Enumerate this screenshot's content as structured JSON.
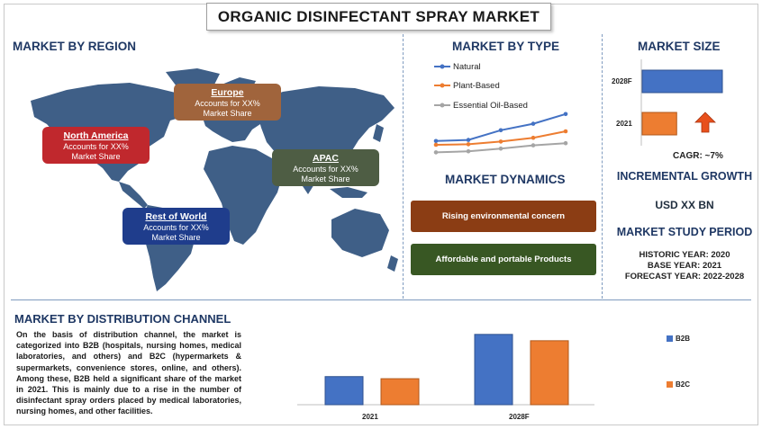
{
  "title": "ORGANIC DISINFECTANT SPRAY MARKET",
  "region": {
    "heading": "MARKET BY REGION",
    "boxes": [
      {
        "name": "North America",
        "line1": "Accounts for XX%",
        "line2": "Market Share",
        "color": "#c0282d"
      },
      {
        "name": "Europe",
        "line1": "Accounts for XX%",
        "line2": "Market Share",
        "color": "#a0643c"
      },
      {
        "name": "APAC",
        "line1": "Accounts for XX%",
        "line2": "Market Share",
        "color": "#4e5d44"
      },
      {
        "name": "Rest of World",
        "line1": "Accounts for XX%",
        "line2": "Market Share",
        "color": "#1f3d8c"
      }
    ]
  },
  "type": {
    "heading": "MARKET BY TYPE",
    "legend": [
      "Natural",
      "Plant-Based",
      "Essential Oil-Based"
    ]
  },
  "dynamics": {
    "heading": "MARKET DYNAMICS",
    "items": [
      {
        "label": "Rising environmental concern",
        "color": "#8b3d14"
      },
      {
        "label": "Affordable and portable Products",
        "color": "#385723"
      }
    ]
  },
  "size": {
    "heading": "MARKET SIZE",
    "bar_labels": [
      "2028F",
      "2021"
    ],
    "cagr": "CAGR: ~7%",
    "incremental_heading": "INCREMENTAL GROWTH",
    "incremental_value": "USD XX BN",
    "study_heading": "MARKET STUDY PERIOD",
    "historic": "HISTORIC YEAR: 2020",
    "base": "BASE YEAR: 2021",
    "forecast": "FORECAST YEAR: 2022-2028"
  },
  "distribution": {
    "heading": "MARKET BY DISTRIBUTION CHANNEL",
    "paragraph": "On the basis of distribution channel, the market is categorized into B2B (hospitals, nursing homes, medical laboratories, and others) and B2C (hypermarkets & supermarkets, convenience stores, online, and others). Among these, B2B held a significant share of the market in 2021. This is mainly due to a rise in the number of disinfectant spray orders placed by medical laboratories, nursing homes, and other facilities."
  },
  "colors": {
    "blue": "#4472c4",
    "orange": "#ed7d31",
    "gray": "#a5a5a5",
    "navy": "#1f3864"
  },
  "chart_data": [
    {
      "type": "line",
      "title": "MARKET BY TYPE",
      "x": [
        1,
        2,
        3,
        4,
        5
      ],
      "series": [
        {
          "name": "Natural",
          "values": [
            3.2,
            3.4,
            5.2,
            6.4,
            8.2
          ]
        },
        {
          "name": "Plant-Based",
          "values": [
            2.5,
            2.6,
            3.1,
            3.8,
            5.0
          ]
        },
        {
          "name": "Essential Oil-Based",
          "values": [
            1.1,
            1.3,
            1.8,
            2.4,
            2.8
          ]
        }
      ],
      "ylim": [
        0,
        9
      ]
    },
    {
      "type": "bar",
      "title": "MARKET SIZE",
      "orientation": "horizontal",
      "categories": [
        "2028F",
        "2021"
      ],
      "values": [
        100,
        43
      ],
      "note": "relative bar lengths, no axis printed"
    },
    {
      "type": "bar",
      "title": "",
      "categories": [
        "2021",
        "2028F"
      ],
      "series": [
        {
          "name": "B2B",
          "values": [
            40,
            100
          ]
        },
        {
          "name": "B2C",
          "values": [
            37,
            91
          ]
        }
      ],
      "ylim": [
        0,
        110
      ],
      "legend": "right"
    }
  ]
}
